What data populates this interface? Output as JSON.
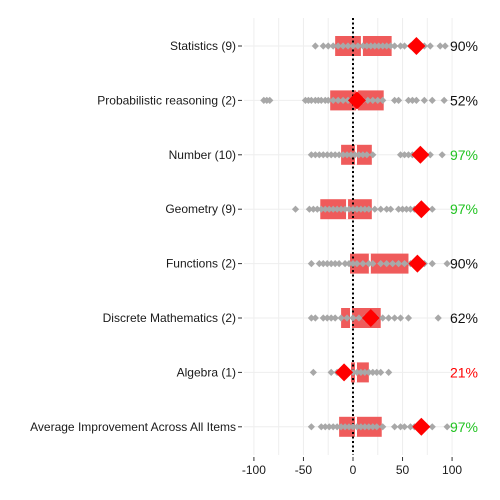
{
  "chart_data": {
    "type": "dot-box",
    "xlim": [
      -110,
      108
    ],
    "x_ticks": [
      -100,
      -50,
      0,
      50,
      100
    ],
    "x_tick_labels": [
      "-100",
      "-50",
      "0",
      "50",
      "100"
    ],
    "reference_line_x": 0,
    "colors": {
      "box": "#ef5b5b",
      "box_divider": "#ffffff",
      "points": "#a8a8a8",
      "mean_marker": "#ff0000",
      "reference_line": "#000000",
      "grid": "#eeeeee",
      "pct_good": "#22c322",
      "pct_neutral": "#111111",
      "pct_bad": "#ff0000"
    },
    "rows": [
      {
        "label": "Statistics (9)",
        "q1": -18,
        "median": 9,
        "q3": 39,
        "mean": 64,
        "percent": "90%",
        "percent_status": "neutral",
        "points": [
          -38,
          -30,
          -25,
          -20,
          -15,
          -10,
          -5,
          0,
          5,
          10,
          14,
          18,
          22,
          26,
          30,
          34,
          38,
          42,
          48,
          52,
          58,
          62,
          68,
          72,
          78,
          88,
          93
        ]
      },
      {
        "label": "Probabilistic reasoning (2)",
        "q1": -23,
        "median": 4,
        "q3": 31,
        "mean": 4,
        "percent": "52%",
        "percent_status": "neutral",
        "points": [
          -90,
          -87,
          -84,
          -48,
          -45,
          -42,
          -38,
          -35,
          -32,
          -28,
          -25,
          -20,
          -15,
          -10,
          -5,
          0,
          5,
          10,
          15,
          20,
          25,
          30,
          42,
          46,
          56,
          60,
          64,
          72,
          80,
          92
        ]
      },
      {
        "label": "Number (10)",
        "q1": -12,
        "median": 3,
        "q3": 19,
        "mean": 68,
        "percent": "97%",
        "percent_status": "good",
        "points": [
          -42,
          -38,
          -34,
          -30,
          -26,
          -22,
          -18,
          -14,
          -10,
          -6,
          -2,
          2,
          6,
          10,
          14,
          20,
          48,
          52,
          56,
          60,
          64,
          72,
          78,
          90
        ]
      },
      {
        "label": "Geometry (9)",
        "q1": -33,
        "median": -6,
        "q3": 19,
        "mean": 69,
        "percent": "97%",
        "percent_status": "good",
        "points": [
          -58,
          -44,
          -40,
          -36,
          -32,
          -28,
          -24,
          -20,
          -16,
          -12,
          -8,
          -4,
          0,
          4,
          8,
          12,
          16,
          22,
          28,
          34,
          38,
          46,
          50,
          54,
          58,
          62,
          66,
          70,
          74,
          80
        ]
      },
      {
        "label": "Functions (2)",
        "q1": -3,
        "median": 17,
        "q3": 56,
        "mean": 65,
        "percent": "90%",
        "percent_status": "neutral",
        "points": [
          -42,
          -34,
          -30,
          -26,
          -22,
          -18,
          -14,
          -8,
          -4,
          0,
          4,
          10,
          16,
          20,
          28,
          34,
          40,
          46,
          52,
          58,
          62,
          66,
          72,
          80,
          95
        ]
      },
      {
        "label": "Discrete Mathematics (2)",
        "q1": -12,
        "median": -2,
        "q3": 28,
        "mean": 18,
        "percent": "62%",
        "percent_status": "neutral",
        "points": [
          -42,
          -38,
          -30,
          -26,
          -22,
          -18,
          -12,
          -6,
          0,
          6,
          12,
          18,
          24,
          30,
          36,
          42,
          48,
          56,
          86
        ]
      },
      {
        "label": "Algebra (1)",
        "q1": -2,
        "median": 3,
        "q3": 16,
        "mean": -9,
        "percent": "21%",
        "percent_status": "bad",
        "points": [
          -40,
          -22,
          -16,
          -12,
          -8,
          -4,
          0,
          4,
          8,
          12,
          16,
          20,
          24,
          28,
          36
        ]
      },
      {
        "label": "Average Improvement Across All Items",
        "q1": -14,
        "median": 3,
        "q3": 29,
        "mean": 69,
        "percent": "97%",
        "percent_status": "good",
        "points": [
          -42,
          -32,
          -28,
          -24,
          -20,
          -16,
          -12,
          -8,
          -4,
          0,
          4,
          8,
          12,
          16,
          20,
          24,
          30,
          42,
          48,
          52,
          58,
          62,
          66,
          72,
          80,
          95
        ]
      }
    ]
  }
}
